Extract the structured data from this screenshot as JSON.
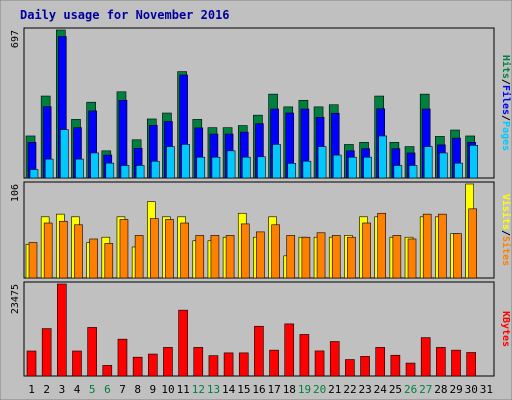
{
  "chart_data": {
    "type": "bar",
    "title": "Daily usage for November 2016",
    "days": [
      "1",
      "2",
      "3",
      "4",
      "5",
      "6",
      "7",
      "8",
      "9",
      "10",
      "11",
      "12",
      "13",
      "14",
      "15",
      "16",
      "17",
      "18",
      "19",
      "20",
      "21",
      "22",
      "23",
      "24",
      "25",
      "26",
      "27",
      "28",
      "29",
      "30",
      "31"
    ],
    "weekend_days": [
      "5",
      "6",
      "12",
      "13",
      "19",
      "20",
      "26",
      "27"
    ],
    "panels": [
      {
        "id": "top",
        "max_label": "697",
        "ylim": [
          0,
          697
        ],
        "legend": [
          "Pages",
          "/",
          "Files",
          "/",
          "Hits"
        ],
        "legend_colors": [
          "#00c8ff",
          "#000000",
          "#0000ff",
          "#000000",
          "#008040"
        ],
        "series": [
          {
            "name": "Hits",
            "color": "#008040",
            "values": [
              198,
              386,
              697,
              276,
              357,
              128,
              406,
              180,
              278,
              306,
              501,
              276,
              237,
              237,
              247,
              296,
              395,
              335,
              366,
              335,
              345,
              158,
              168,
              386,
              168,
              148,
              395,
              196,
              226,
              198,
              0
            ]
          },
          {
            "name": "Files",
            "color": "#0000ff",
            "values": [
              168,
              336,
              666,
              237,
              316,
              108,
              366,
              140,
              248,
              266,
              485,
              236,
              207,
              207,
              216,
              256,
              325,
              306,
              325,
              286,
              305,
              128,
              138,
              326,
              138,
              118,
              325,
              156,
              188,
              168,
              0
            ]
          },
          {
            "name": "Pages",
            "color": "#00c8ff",
            "values": [
              40,
              89,
              228,
              89,
              118,
              70,
              59,
              59,
              79,
              148,
              158,
              98,
              98,
              128,
              98,
              100,
              158,
              69,
              79,
              148,
              108,
              98,
              98,
              198,
              59,
              59,
              148,
              118,
              70,
              154,
              0
            ]
          }
        ]
      },
      {
        "id": "middle",
        "max_label": "106",
        "ylim": [
          0,
          106
        ],
        "legend": [
          "Sites",
          "/",
          "Visits"
        ],
        "legend_colors": [
          "#ff8000",
          "#000000",
          "#ffff00"
        ],
        "series": [
          {
            "name": "Visits",
            "color": "#ffff00",
            "values": [
              38,
              69,
              72,
              69,
              40,
              46,
              69,
              35,
              86,
              69,
              69,
              42,
              42,
              46,
              73,
              46,
              69,
              25,
              46,
              46,
              46,
              48,
              69,
              69,
              46,
              46,
              69,
              69,
              50,
              106,
              0
            ]
          },
          {
            "name": "Sites",
            "color": "#ff8000",
            "values": [
              40,
              62,
              64,
              60,
              44,
              39,
              66,
              48,
              67,
              66,
              62,
              48,
              48,
              48,
              61,
              52,
              60,
              48,
              46,
              51,
              48,
              46,
              62,
              73,
              48,
              44,
              72,
              72,
              50,
              78,
              0
            ]
          }
        ]
      },
      {
        "id": "bottom",
        "max_label": "23475",
        "ylim": [
          0,
          23475
        ],
        "legend": [
          "KBytes"
        ],
        "legend_colors": [
          "#ff0000"
        ],
        "series": [
          {
            "name": "KBytes",
            "color": "#ff0000",
            "values": [
              6380,
              12100,
              23475,
              6380,
              12400,
              2700,
              9400,
              4800,
              5600,
              7300,
              16800,
              7300,
              5200,
              5900,
              5900,
              12700,
              6600,
              13300,
              10600,
              6400,
              8800,
              4200,
              5000,
              7300,
              5300,
              3300,
              9800,
              7300,
              6600,
              6000,
              0
            ]
          }
        ]
      }
    ]
  }
}
